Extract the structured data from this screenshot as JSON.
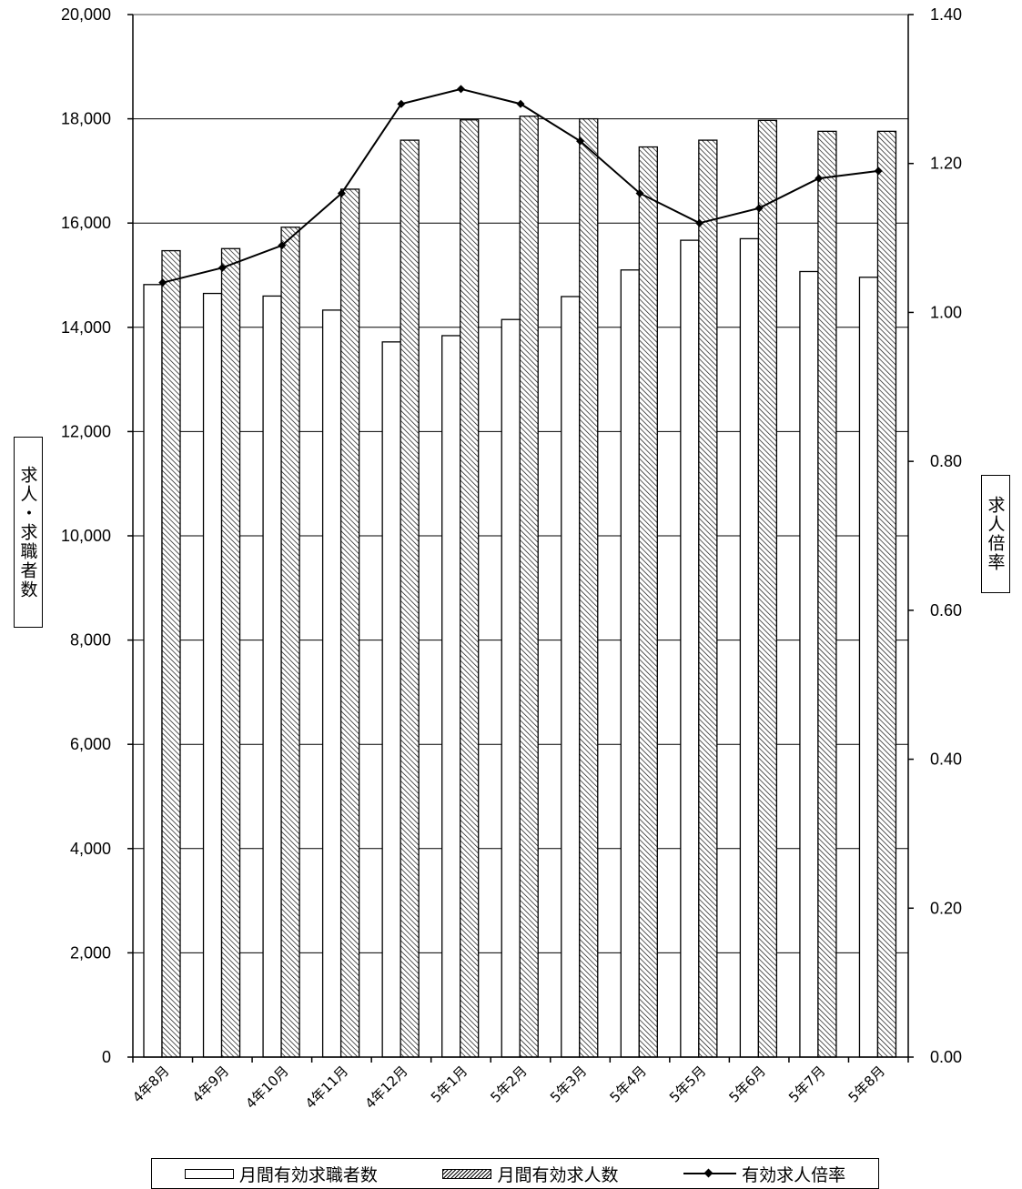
{
  "chart_data": {
    "type": "bar",
    "categories": [
      "4年8月",
      "4年9月",
      "4年10月",
      "4年11月",
      "4年12月",
      "5年1月",
      "5年2月",
      "5年3月",
      "5年4月",
      "5年5月",
      "5年6月",
      "5年7月",
      "5年8月"
    ],
    "series": [
      {
        "name": "月間有効求職者数",
        "type": "bar",
        "axis": "left",
        "values": [
          14820,
          14650,
          14600,
          14330,
          13720,
          13840,
          14150,
          14590,
          15100,
          15670,
          15700,
          15070,
          14960
        ]
      },
      {
        "name": "月間有効求人数",
        "type": "bar",
        "axis": "left",
        "pattern": "hatched",
        "values": [
          15470,
          15510,
          15920,
          16650,
          17590,
          17980,
          18050,
          18000,
          17460,
          17590,
          17970,
          17760,
          17760
        ]
      },
      {
        "name": "有効求人倍率",
        "type": "line",
        "axis": "right",
        "values": [
          1.04,
          1.06,
          1.09,
          1.16,
          1.28,
          1.3,
          1.28,
          1.23,
          1.16,
          1.12,
          1.14,
          1.18,
          1.19
        ]
      }
    ],
    "ylabel": "求人・求職者数",
    "y2label": "求人倍率",
    "ylim": [
      0,
      20000
    ],
    "y2lim": [
      0,
      1.4
    ],
    "yticks": [
      "0",
      "2,000",
      "4,000",
      "6,000",
      "8,000",
      "10,000",
      "12,000",
      "14,000",
      "16,000",
      "18,000",
      "20,000"
    ],
    "y2ticks": [
      "0.00",
      "0.20",
      "0.40",
      "0.60",
      "0.80",
      "1.00",
      "1.20",
      "1.40"
    ],
    "grid": true,
    "legend_position": "bottom"
  }
}
